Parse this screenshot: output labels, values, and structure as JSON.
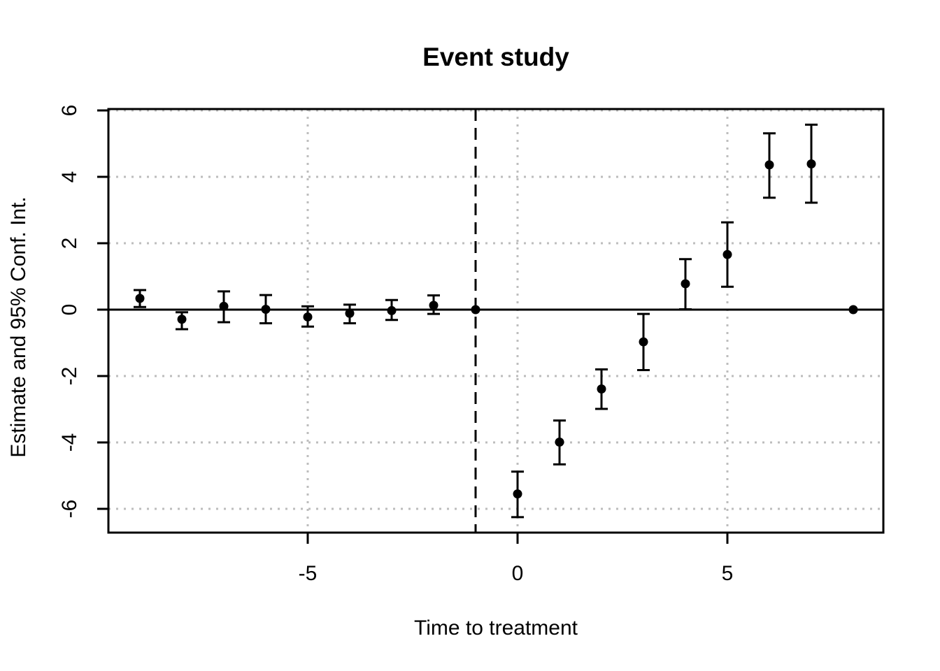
{
  "page": {
    "background_color": "#ffffff"
  },
  "chart_data": {
    "type": "scatter",
    "subtype": "event-study-errorbar",
    "title": "Event study",
    "xlabel": "Time to treatment",
    "ylabel": "Estimate and 95% Conf. Int.",
    "x_ticks": [
      -5,
      0,
      5
    ],
    "y_ticks": [
      -6,
      -4,
      -2,
      0,
      2,
      4,
      6
    ],
    "xlim": [
      -9.75,
      8.72
    ],
    "ylim": [
      -6.72,
      6.06
    ],
    "grid": true,
    "grid_style": "dotted",
    "grid_color": "#bdbdbd",
    "x_gridlines": [
      -5,
      0,
      5
    ],
    "y_gridlines": [
      -6,
      -4,
      -2,
      0,
      2,
      4,
      6
    ],
    "reference_vline_x": -1,
    "reference_vline_style": "dashed",
    "zero_hline_y": 0,
    "point_color": "#000000",
    "legend": "none",
    "series": [
      {
        "name": "Estimate and 95% Conf. Int.",
        "points": [
          {
            "t": -9,
            "estimate": 0.34,
            "ci_low": 0.08,
            "ci_high": 0.59
          },
          {
            "t": -8,
            "estimate": -0.29,
            "ci_low": -0.59,
            "ci_high": -0.08
          },
          {
            "t": -7,
            "estimate": 0.1,
            "ci_low": -0.38,
            "ci_high": 0.55
          },
          {
            "t": -6,
            "estimate": 0.01,
            "ci_low": -0.41,
            "ci_high": 0.44
          },
          {
            "t": -5,
            "estimate": -0.22,
            "ci_low": -0.51,
            "ci_high": 0.1
          },
          {
            "t": -4,
            "estimate": -0.11,
            "ci_low": -0.41,
            "ci_high": 0.15
          },
          {
            "t": -3,
            "estimate": -0.03,
            "ci_low": -0.31,
            "ci_high": 0.29
          },
          {
            "t": -2,
            "estimate": 0.13,
            "ci_low": -0.13,
            "ci_high": 0.43
          },
          {
            "t": -1,
            "estimate": 0.0,
            "ci_low": null,
            "ci_high": null
          },
          {
            "t": 0,
            "estimate": -5.55,
            "ci_low": -6.25,
            "ci_high": -4.88
          },
          {
            "t": 1,
            "estimate": -3.99,
            "ci_low": -4.66,
            "ci_high": -3.34
          },
          {
            "t": 2,
            "estimate": -2.39,
            "ci_low": -2.99,
            "ci_high": -1.8
          },
          {
            "t": 3,
            "estimate": -0.97,
            "ci_low": -1.82,
            "ci_high": -0.13
          },
          {
            "t": 4,
            "estimate": 0.78,
            "ci_low": 0.01,
            "ci_high": 1.52
          },
          {
            "t": 5,
            "estimate": 1.66,
            "ci_low": 0.69,
            "ci_high": 2.63
          },
          {
            "t": 6,
            "estimate": 4.36,
            "ci_low": 3.37,
            "ci_high": 5.31
          },
          {
            "t": 7,
            "estimate": 4.39,
            "ci_low": 3.22,
            "ci_high": 5.57
          },
          {
            "t": 8,
            "estimate": 0.0,
            "ci_low": null,
            "ci_high": null
          }
        ]
      }
    ]
  }
}
